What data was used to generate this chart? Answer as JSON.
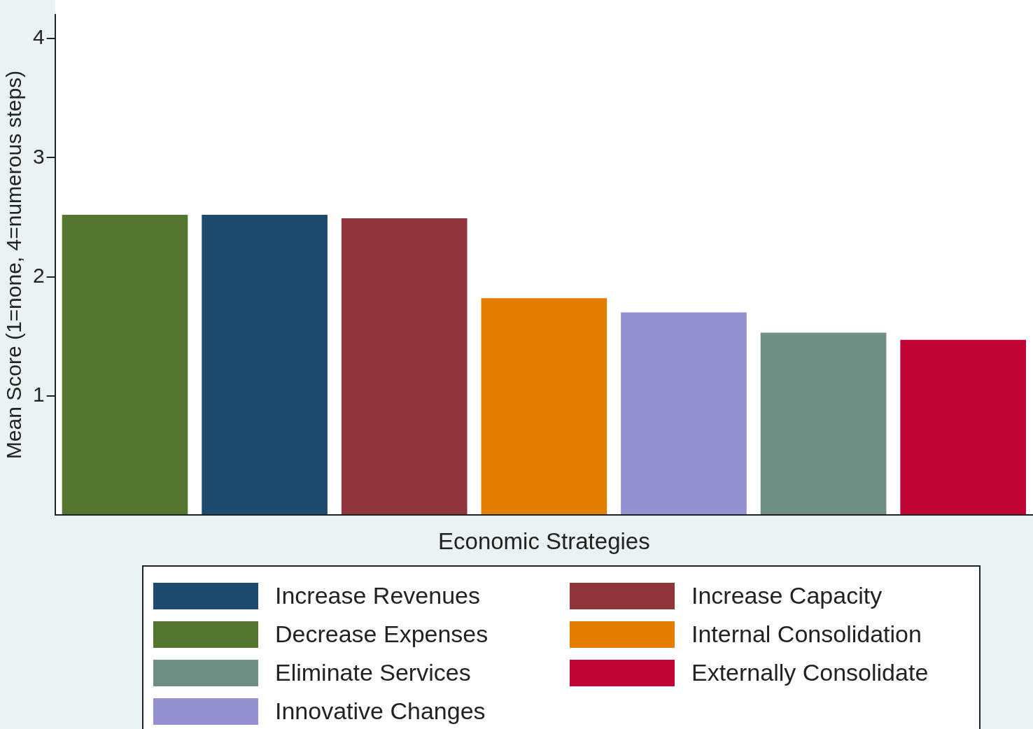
{
  "chart_data": {
    "type": "bar",
    "xlabel": "Economic Strategies",
    "ylabel": "Mean Score (1=none, 4=numerous steps)",
    "categories": [
      null,
      null,
      null,
      null,
      null,
      null,
      null
    ],
    "series": [
      {
        "name": "Increase Revenues",
        "color": "#1e4a6e",
        "values": [
          null,
          2.52,
          null,
          null,
          null,
          null,
          null
        ]
      },
      {
        "name": "Increase Capacity",
        "color": "#90353b",
        "values": [
          null,
          null,
          2.49,
          null,
          null,
          null,
          null
        ]
      },
      {
        "name": "Decrease Expenses",
        "color": "#557630",
        "values": [
          2.52,
          null,
          null,
          null,
          null,
          null,
          null
        ]
      },
      {
        "name": "Internal Consolidation",
        "color": "#e37e00",
        "values": [
          null,
          null,
          null,
          1.82,
          null,
          null,
          null
        ]
      },
      {
        "name": "Eliminate Services",
        "color": "#6f8f85",
        "values": [
          null,
          null,
          null,
          null,
          null,
          1.53,
          null
        ]
      },
      {
        "name": "Externally Consolidate",
        "color": "#c10534",
        "values": [
          null,
          null,
          null,
          null,
          null,
          null,
          1.47
        ]
      },
      {
        "name": "Innovative Changes",
        "color": "#9590d0",
        "values": [
          null,
          null,
          null,
          null,
          1.7,
          null,
          null
        ]
      }
    ],
    "ylim": [
      0,
      4.2
    ],
    "yticks": [
      1,
      2,
      3,
      4
    ],
    "grid": false,
    "legend": "bottom"
  }
}
